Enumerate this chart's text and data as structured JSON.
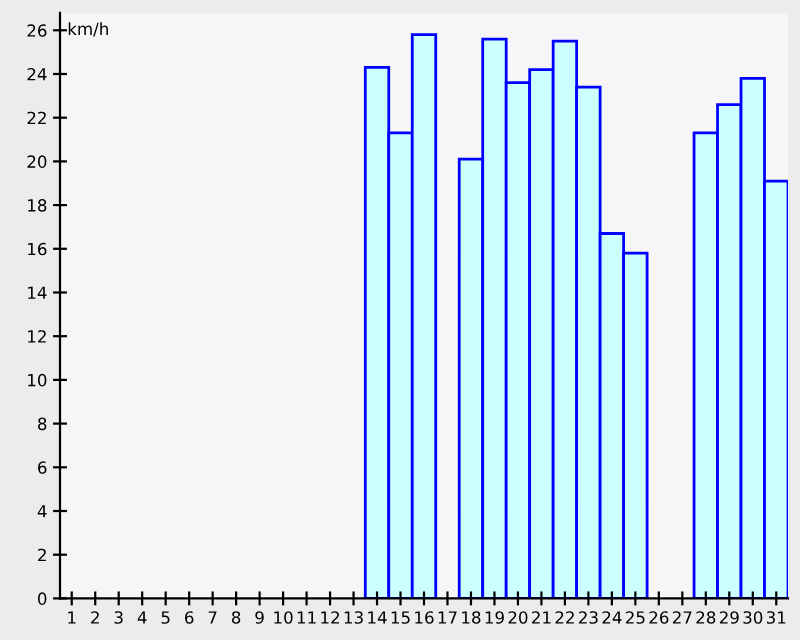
{
  "chart_data": {
    "type": "bar",
    "ylabel": "km/h",
    "categories": [
      "1",
      "2",
      "3",
      "4",
      "5",
      "6",
      "7",
      "8",
      "9",
      "10",
      "11",
      "12",
      "13",
      "14",
      "15",
      "16",
      "17",
      "18",
      "19",
      "20",
      "21",
      "22",
      "23",
      "24",
      "25",
      "26",
      "27",
      "28",
      "29",
      "30",
      "31"
    ],
    "values": [
      null,
      null,
      null,
      null,
      null,
      null,
      null,
      null,
      null,
      null,
      null,
      null,
      null,
      24.3,
      21.3,
      25.8,
      null,
      20.1,
      25.6,
      23.6,
      24.2,
      25.5,
      23.4,
      16.7,
      15.8,
      null,
      null,
      21.3,
      22.6,
      23.8,
      19.1
    ],
    "color": "#ccffff",
    "ylim": [
      0,
      26.8
    ],
    "yticks": [
      0,
      2,
      4,
      6,
      8,
      10,
      12,
      14,
      16,
      18,
      20,
      22,
      24,
      26
    ],
    "grid": false
  }
}
